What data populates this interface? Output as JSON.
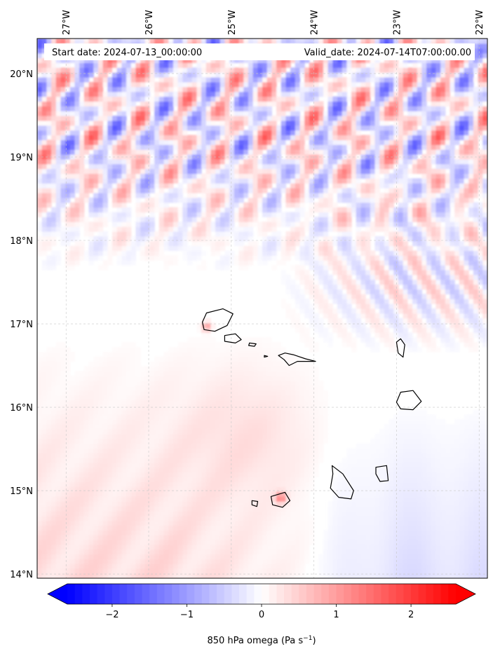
{
  "chart_data": {
    "type": "heatmap",
    "field": "850 hPa omega",
    "header": {
      "start_date": "Start date: 2024-07-13_00:00:00",
      "valid_date": "Valid_date: 2024-07-14T07:00:00.00"
    },
    "lon_range": [
      -27.35,
      -21.9
    ],
    "lat_range": [
      13.95,
      20.42
    ],
    "lon_ticks": [
      {
        "value": -27,
        "label": "27°W"
      },
      {
        "value": -26,
        "label": "26°W"
      },
      {
        "value": -25,
        "label": "25°W"
      },
      {
        "value": -24,
        "label": "24°W"
      },
      {
        "value": -23,
        "label": "23°W"
      },
      {
        "value": -22,
        "label": "22°W"
      }
    ],
    "lat_ticks": [
      {
        "value": 20,
        "label": "20°N"
      },
      {
        "value": 19,
        "label": "19°N"
      },
      {
        "value": 18,
        "label": "18°N"
      },
      {
        "value": 17,
        "label": "17°N"
      },
      {
        "value": 16,
        "label": "16°N"
      },
      {
        "value": 15,
        "label": "15°N"
      },
      {
        "value": 14,
        "label": "14°N"
      }
    ],
    "grid": true,
    "colorbar": {
      "label": "850 hPa omega (Pa s",
      "unit_superscript": "−1",
      "label_close": ")",
      "vmin": -2.6,
      "vmax": 2.6,
      "extend": "both",
      "colormap": "bwr",
      "ticks": [
        {
          "value": -2,
          "label": "−2"
        },
        {
          "value": -1,
          "label": "−1"
        },
        {
          "value": 0,
          "label": "0"
        },
        {
          "value": 1,
          "label": "1"
        },
        {
          "value": 2,
          "label": "2"
        }
      ]
    },
    "islands": [
      {
        "name": "Santo Antão",
        "coords": [
          [
            -25.35,
            17.02
          ],
          [
            -25.3,
            17.13
          ],
          [
            -25.1,
            17.18
          ],
          [
            -24.98,
            17.12
          ],
          [
            -25.05,
            16.98
          ],
          [
            -25.2,
            16.91
          ],
          [
            -25.33,
            16.93
          ]
        ]
      },
      {
        "name": "São Vicente",
        "coords": [
          [
            -25.08,
            16.86
          ],
          [
            -24.95,
            16.88
          ],
          [
            -24.88,
            16.81
          ],
          [
            -24.95,
            16.77
          ],
          [
            -25.08,
            16.79
          ]
        ]
      },
      {
        "name": "Santa Luzia",
        "coords": [
          [
            -24.78,
            16.77
          ],
          [
            -24.7,
            16.76
          ],
          [
            -24.72,
            16.73
          ],
          [
            -24.79,
            16.74
          ]
        ]
      },
      {
        "name": "Raso",
        "coords": [
          [
            -24.6,
            16.62
          ],
          [
            -24.56,
            16.61
          ],
          [
            -24.6,
            16.6
          ]
        ]
      },
      {
        "name": "São Nicolau",
        "coords": [
          [
            -24.43,
            16.62
          ],
          [
            -24.35,
            16.65
          ],
          [
            -24.25,
            16.63
          ],
          [
            -24.1,
            16.58
          ],
          [
            -23.98,
            16.55
          ],
          [
            -24.2,
            16.55
          ],
          [
            -24.3,
            16.5
          ],
          [
            -24.36,
            16.57
          ]
        ]
      },
      {
        "name": "Sal",
        "coords": [
          [
            -22.95,
            16.82
          ],
          [
            -22.9,
            16.75
          ],
          [
            -22.92,
            16.6
          ],
          [
            -22.98,
            16.65
          ],
          [
            -23.0,
            16.78
          ]
        ]
      },
      {
        "name": "Boa Vista",
        "coords": [
          [
            -22.95,
            16.18
          ],
          [
            -22.8,
            16.2
          ],
          [
            -22.7,
            16.07
          ],
          [
            -22.8,
            15.97
          ],
          [
            -22.95,
            15.98
          ],
          [
            -23.0,
            16.06
          ]
        ]
      },
      {
        "name": "Maio",
        "coords": [
          [
            -23.25,
            15.28
          ],
          [
            -23.12,
            15.3
          ],
          [
            -23.1,
            15.12
          ],
          [
            -23.2,
            15.11
          ],
          [
            -23.25,
            15.2
          ]
        ]
      },
      {
        "name": "Santiago",
        "coords": [
          [
            -23.78,
            15.3
          ],
          [
            -23.65,
            15.2
          ],
          [
            -23.52,
            15.0
          ],
          [
            -23.55,
            14.9
          ],
          [
            -23.7,
            14.92
          ],
          [
            -23.8,
            15.03
          ],
          [
            -23.77,
            15.2
          ]
        ]
      },
      {
        "name": "Fogo",
        "coords": [
          [
            -24.52,
            14.93
          ],
          [
            -24.35,
            14.98
          ],
          [
            -24.29,
            14.88
          ],
          [
            -24.38,
            14.8
          ],
          [
            -24.5,
            14.83
          ]
        ]
      },
      {
        "name": "Brava",
        "coords": [
          [
            -24.75,
            14.88
          ],
          [
            -24.68,
            14.87
          ],
          [
            -24.69,
            14.81
          ],
          [
            -24.75,
            14.83
          ]
        ]
      }
    ],
    "field_summary": "North of ~18.5N: strong banded mixed positive/negative omega (about -1.8 to +1.8). Southwest: weak positive (+0.2 to +0.6). Southeast of islands: weak negative (-0.2 to -0.4). Local positive maxima near Fogo and Santo Antão (~+1 to +1.5)."
  }
}
